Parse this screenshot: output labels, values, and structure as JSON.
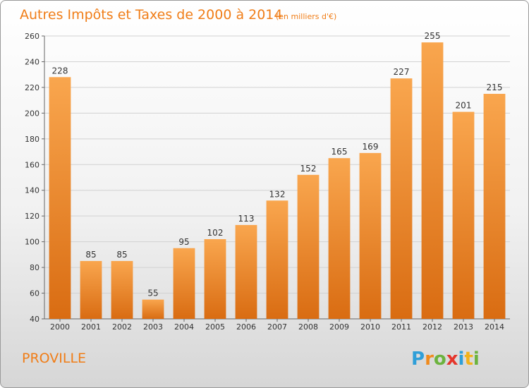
{
  "chart_data": {
    "type": "bar",
    "title": "Autres Impôts et Taxes de 2000 à 2014",
    "subtitle": "(en milliers d'€)",
    "categories": [
      "2000",
      "2001",
      "2002",
      "2003",
      "2004",
      "2005",
      "2006",
      "2007",
      "2008",
      "2009",
      "2010",
      "2011",
      "2012",
      "2013",
      "2014"
    ],
    "values": [
      228,
      85,
      85,
      55,
      95,
      102,
      113,
      132,
      152,
      165,
      169,
      227,
      255,
      201,
      215
    ],
    "ylim": [
      40,
      260
    ],
    "yticks": [
      40,
      60,
      80,
      100,
      120,
      140,
      160,
      180,
      200,
      220,
      240,
      260
    ],
    "grid": true,
    "bar_color": "#f28e2e"
  },
  "footer": {
    "commune": "PROVILLE",
    "logo_letters": [
      {
        "ch": "P",
        "color": "#2f9fd8"
      },
      {
        "ch": "r",
        "color": "#f08a1c"
      },
      {
        "ch": "o",
        "color": "#6cb33e"
      },
      {
        "ch": "x",
        "color": "#e5362c"
      },
      {
        "ch": "i",
        "color": "#2f9fd8"
      },
      {
        "ch": "t",
        "color": "#f2b21a"
      },
      {
        "ch": "i",
        "color": "#6cb33e"
      }
    ]
  }
}
